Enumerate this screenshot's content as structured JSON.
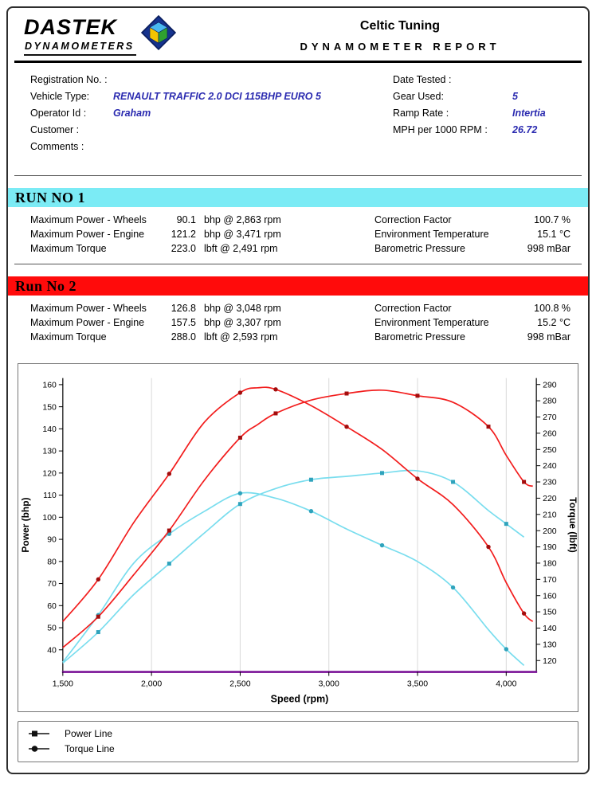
{
  "header": {
    "logo_line1": "DASTEK",
    "logo_line2": "DYNAMOMETERS",
    "title": "Celtic Tuning",
    "subtitle": "DYNAMOMETER REPORT"
  },
  "info": {
    "left": [
      {
        "label": "Registration No. :",
        "value": ""
      },
      {
        "label": "Vehicle Type:",
        "value": "RENAULT TRAFFIC 2.0 DCI 115BHP EURO 5"
      },
      {
        "label": "Operator Id :",
        "value": "Graham"
      },
      {
        "label": "Customer :",
        "value": ""
      },
      {
        "label": "Comments :",
        "value": ""
      }
    ],
    "right": [
      {
        "label": "Date Tested :",
        "value": ""
      },
      {
        "label": "Gear Used:",
        "value": "5"
      },
      {
        "label": "Ramp Rate :",
        "value": "Intertia"
      },
      {
        "label": "MPH per 1000 RPM :",
        "value": "26.72"
      }
    ]
  },
  "runs": [
    {
      "title": "RUN NO 1",
      "color": "#7BEBF5",
      "stats": [
        {
          "label": "Maximum Power - Wheels",
          "value": "90.1",
          "detail": "bhp @ 2,863 rpm"
        },
        {
          "label": "Maximum Power - Engine",
          "value": "121.2",
          "detail": "bhp @ 3,471 rpm"
        },
        {
          "label": "Maximum Torque",
          "value": "223.0",
          "detail": "lbft @ 2,491 rpm"
        }
      ],
      "env": [
        {
          "label": "Correction Factor",
          "value": "100.7 %"
        },
        {
          "label": "Environment Temperature",
          "value": "15.1 °C"
        },
        {
          "label": "Barometric Pressure",
          "value": "998 mBar"
        }
      ]
    },
    {
      "title": "Run No 2",
      "color": "#FF0B0B",
      "stats": [
        {
          "label": "Maximum Power - Wheels",
          "value": "126.8",
          "detail": "bhp @ 3,048 rpm"
        },
        {
          "label": "Maximum Power - Engine",
          "value": "157.5",
          "detail": "bhp @ 3,307 rpm"
        },
        {
          "label": "Maximum Torque",
          "value": "288.0",
          "detail": "lbft @ 2,593 rpm"
        }
      ],
      "env": [
        {
          "label": "Correction Factor",
          "value": "100.8 %"
        },
        {
          "label": "Environment Temperature",
          "value": "15.2 °C"
        },
        {
          "label": "Barometric Pressure",
          "value": "998 mBar"
        }
      ]
    }
  ],
  "chart_data": {
    "type": "line",
    "xlabel": "Speed (rpm)",
    "ylabel_left": "Power (bhp)",
    "ylabel_right": "Torque (lbft)",
    "x_range": [
      1500,
      4170
    ],
    "x_ticks": [
      1500,
      2000,
      2500,
      3000,
      3500,
      4000
    ],
    "left_ylim": [
      30,
      163
    ],
    "left_ticks": [
      40,
      50,
      60,
      70,
      80,
      90,
      100,
      110,
      120,
      130,
      140,
      150,
      160
    ],
    "right_ylim": [
      113,
      294
    ],
    "right_ticks": [
      120,
      130,
      140,
      150,
      160,
      170,
      180,
      190,
      200,
      210,
      220,
      230,
      240,
      250,
      260,
      270,
      280,
      290
    ],
    "grid_color": "#d9d9d9",
    "baseline_color": "#7A1096",
    "series": [
      {
        "name": "Run 1 Power (bhp)",
        "axis": "left",
        "marker": "square",
        "color": "#79DDEE",
        "marker_color": "#2FA3BC",
        "x": [
          1500,
          1700,
          1900,
          2100,
          2300,
          2500,
          2700,
          2900,
          3100,
          3300,
          3500,
          3700,
          3900,
          4000,
          4100
        ],
        "values": [
          34,
          48,
          65,
          79,
          93,
          106,
          113,
          117,
          118.5,
          120,
          121,
          116,
          103,
          97,
          91
        ]
      },
      {
        "name": "Run 1 Torque (lbft)",
        "axis": "right",
        "marker": "circle",
        "color": "#79DDEE",
        "marker_color": "#2FA3BC",
        "x": [
          1500,
          1700,
          1900,
          2100,
          2300,
          2500,
          2700,
          2900,
          3100,
          3300,
          3500,
          3700,
          3900,
          4000,
          4100
        ],
        "values": [
          119,
          148,
          180,
          198,
          212,
          223,
          220,
          212,
          201,
          191,
          181,
          165,
          139,
          127,
          117
        ]
      },
      {
        "name": "Run 2 Power (bhp)",
        "axis": "left",
        "marker": "square",
        "color": "#F21D1D",
        "marker_color": "#A30D0D",
        "x": [
          1500,
          1700,
          1900,
          2100,
          2300,
          2500,
          2600,
          2700,
          2900,
          3100,
          3300,
          3500,
          3700,
          3900,
          4000,
          4100,
          4150
        ],
        "values": [
          41,
          55,
          74,
          94,
          117,
          136,
          142,
          147,
          153,
          156,
          157.5,
          155,
          152,
          141,
          128,
          116,
          114
        ]
      },
      {
        "name": "Run 2 Torque (lbft)",
        "axis": "right",
        "marker": "circle",
        "color": "#F21D1D",
        "marker_color": "#A30D0D",
        "x": [
          1500,
          1700,
          1900,
          2100,
          2300,
          2500,
          2600,
          2700,
          2900,
          3100,
          3300,
          3500,
          3700,
          3900,
          4000,
          4100,
          4150
        ],
        "values": [
          144,
          170,
          205,
          235,
          267,
          285,
          288,
          287,
          277,
          264,
          250,
          232,
          216,
          190,
          168,
          149,
          144
        ]
      }
    ]
  },
  "legend": [
    {
      "marker": "square",
      "label": "Power Line"
    },
    {
      "marker": "circle",
      "label": "Torque Line"
    }
  ],
  "colors": {
    "value_blue": "#2B2BB0",
    "run1_banner": "#7BEBF5",
    "run2_banner": "#FF0B0B"
  }
}
